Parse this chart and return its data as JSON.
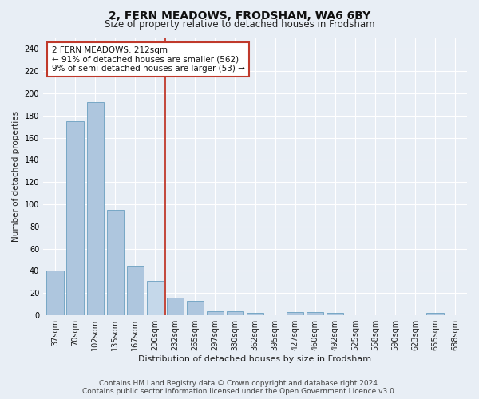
{
  "title": "2, FERN MEADOWS, FRODSHAM, WA6 6BY",
  "subtitle": "Size of property relative to detached houses in Frodsham",
  "xlabel": "Distribution of detached houses by size in Frodsham",
  "ylabel": "Number of detached properties",
  "bar_labels": [
    "37sqm",
    "70sqm",
    "102sqm",
    "135sqm",
    "167sqm",
    "200sqm",
    "232sqm",
    "265sqm",
    "297sqm",
    "330sqm",
    "362sqm",
    "395sqm",
    "427sqm",
    "460sqm",
    "492sqm",
    "525sqm",
    "558sqm",
    "590sqm",
    "623sqm",
    "655sqm",
    "688sqm"
  ],
  "bar_values": [
    40,
    175,
    192,
    95,
    45,
    31,
    16,
    13,
    4,
    4,
    2,
    0,
    3,
    3,
    2,
    0,
    0,
    0,
    0,
    2,
    0
  ],
  "bar_color": "#aec6de",
  "bar_edge_color": "#6a9fc0",
  "highlight_bar_index": 5,
  "highlight_bar_color": "#c5d8ea",
  "highlight_bar_edge_color": "#6a9fc0",
  "vline_x": 5.5,
  "vline_color": "#c0392b",
  "ylim": [
    0,
    250
  ],
  "yticks": [
    0,
    20,
    40,
    60,
    80,
    100,
    120,
    140,
    160,
    180,
    200,
    220,
    240
  ],
  "annotation_title": "2 FERN MEADOWS: 212sqm",
  "annotation_line1": "← 91% of detached houses are smaller (562)",
  "annotation_line2": "9% of semi-detached houses are larger (53) →",
  "annotation_box_color": "#ffffff",
  "annotation_box_edge_color": "#c0392b",
  "footnote1": "Contains HM Land Registry data © Crown copyright and database right 2024.",
  "footnote2": "Contains public sector information licensed under the Open Government Licence v3.0.",
  "bg_color": "#e8eef5",
  "plot_bg_color": "#e8eef5",
  "title_fontsize": 10,
  "subtitle_fontsize": 8.5,
  "xlabel_fontsize": 8,
  "ylabel_fontsize": 7.5,
  "tick_fontsize": 7,
  "annotation_fontsize": 7.5,
  "footnote_fontsize": 6.5
}
